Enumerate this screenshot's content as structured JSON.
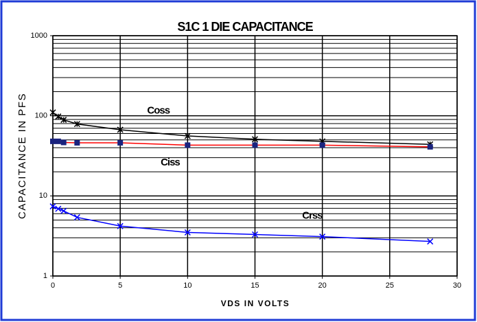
{
  "chart_data": {
    "type": "line",
    "title": "S1C 1 DIE CAPACITANCE",
    "x_label": "VDS IN VOLTS",
    "y_label": "CAPACITANCE IN PFS",
    "x": [
      0,
      0.4,
      0.8,
      1.8,
      5,
      10,
      15,
      20,
      28
    ],
    "series": [
      {
        "name": "Coss",
        "color": "#000000",
        "marker": "star",
        "marker_color": "#000000",
        "values": [
          110,
          98,
          89,
          79,
          67,
          56,
          51,
          48,
          44
        ]
      },
      {
        "name": "Ciss",
        "color": "#ff0000",
        "marker": "square",
        "marker_color": "#1a237e",
        "values": [
          48,
          48,
          46.5,
          46,
          46,
          43,
          43,
          43,
          41
        ]
      },
      {
        "name": "Crss",
        "color": "#0000ff",
        "marker": "x",
        "marker_color": "#0000ff",
        "values": [
          7.4,
          6.9,
          6.5,
          5.4,
          4.2,
          3.5,
          3.3,
          3.1,
          2.7
        ]
      }
    ],
    "annotations": [
      {
        "text": "Coss",
        "x": 7,
        "y": 115
      },
      {
        "text": "Ciss",
        "x": 8,
        "y": 26
      },
      {
        "text": "Crss",
        "x": 18.5,
        "y": 5.6
      }
    ],
    "xlim": [
      0,
      30
    ],
    "xticks": [
      0,
      5,
      10,
      15,
      20,
      25,
      30
    ],
    "ylim": [
      1,
      1000
    ],
    "yticks": [
      1,
      10,
      100,
      1000
    ],
    "ylog": true,
    "grid": true,
    "minor_grid": true
  }
}
